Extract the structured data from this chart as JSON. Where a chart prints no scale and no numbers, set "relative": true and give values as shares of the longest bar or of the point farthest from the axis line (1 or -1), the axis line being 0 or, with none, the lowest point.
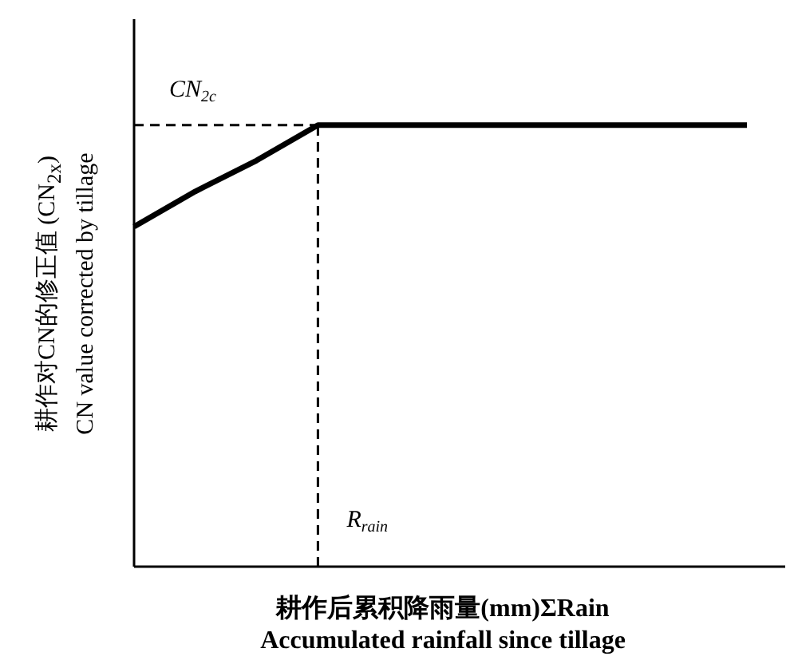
{
  "chart_data": {
    "type": "line",
    "relative": true,
    "xlabel": "耕作后累积降雨量(mm)ΣRain\nAccumulated rainfall since tillage",
    "ylabel": "耕作对CN的修正值 (CN$_{2x}$)\nCN value corrected by tillage",
    "categories": [
      null,
      null,
      null,
      null,
      null,
      null,
      null,
      null,
      null,
      null,
      null
    ],
    "series": [
      {
        "color": "#000000",
        "values": [
          0.77,
          0.85,
          0.92,
          1,
          1,
          1,
          1,
          1,
          1,
          1,
          1
        ]
      }
    ],
    "ref_lines": [
      {
        "axis": "y",
        "value": 1,
        "label": "CN$_{2c}$",
        "line_style": "dashed",
        "color": "#000000"
      }
    ],
    "annotations": [
      "R$_{rain}$"
    ],
    "marker": "none",
    "grid": false
  }
}
